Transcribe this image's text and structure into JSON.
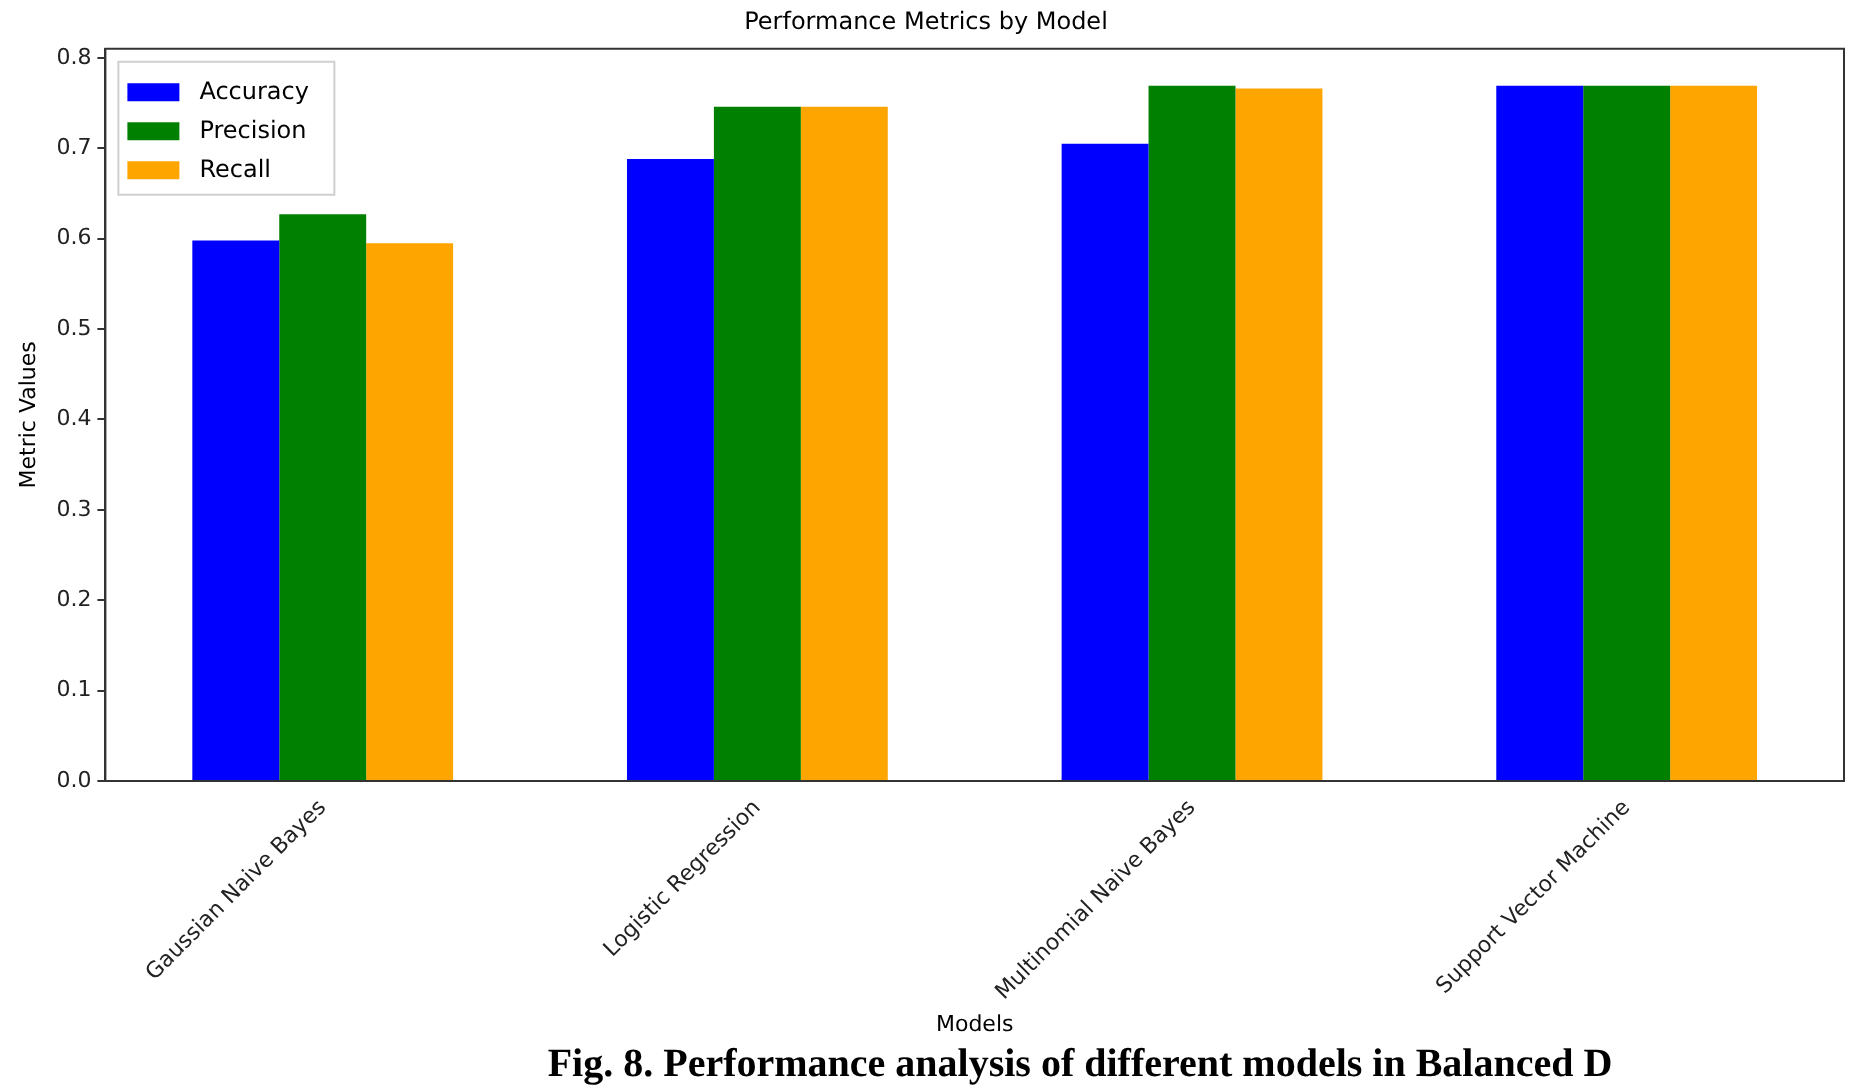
{
  "chart_data": {
    "type": "bar",
    "title": "Performance Metrics by Model",
    "xlabel": "Models",
    "ylabel": "Metric Values",
    "categories": [
      "Gaussian Naive Bayes",
      "Logistic Regression",
      "Multinomial Naive Bayes",
      "Support Vector Machine"
    ],
    "series": [
      {
        "name": "Accuracy",
        "color": "#0000ff",
        "values": [
          0.598,
          0.688,
          0.705,
          0.769
        ]
      },
      {
        "name": "Precision",
        "color": "#008000",
        "values": [
          0.627,
          0.746,
          0.769,
          0.769
        ]
      },
      {
        "name": "Recall",
        "color": "#ffa500",
        "values": [
          0.595,
          0.746,
          0.766,
          0.769
        ]
      }
    ],
    "ylim": [
      0,
      0.81
    ],
    "yticks": [
      {
        "value": 0,
        "label": "0.0"
      },
      0.1,
      0.2,
      0.3,
      0.4,
      0.5,
      0.6,
      0.7,
      0.8
    ],
    "grid": false,
    "legend": "top left",
    "annotations": [
      "Fig. 8. Performance analysis of different models in Balanced D"
    ]
  }
}
